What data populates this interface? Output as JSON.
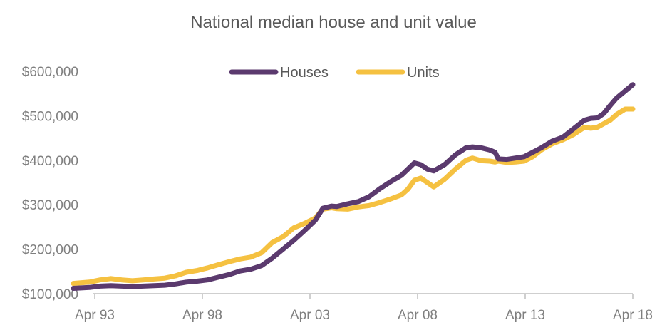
{
  "chart_data": {
    "type": "line",
    "title": "National median house and unit value",
    "xlabel": "",
    "ylabel": "",
    "x_ticks": [
      "Apr 93",
      "Apr 98",
      "Apr 03",
      "Apr 08",
      "Apr 13",
      "Apr 18"
    ],
    "y_ticks": [
      "$100,000",
      "$200,000",
      "$300,000",
      "$400,000",
      "$500,000",
      "$600,000"
    ],
    "ylim": [
      100000,
      600000
    ],
    "xlim": [
      1993.25,
      2018.25
    ],
    "grid": false,
    "legend_position": "top",
    "series": [
      {
        "name": "Houses",
        "color": "#5b3a6e",
        "points": [
          [
            1993.25,
            112000
          ],
          [
            1994.0,
            114000
          ],
          [
            1994.5,
            117000
          ],
          [
            1995.0,
            118000
          ],
          [
            1995.5,
            117000
          ],
          [
            1996.0,
            116000
          ],
          [
            1996.5,
            117000
          ],
          [
            1997.0,
            118000
          ],
          [
            1997.5,
            119000
          ],
          [
            1998.0,
            122000
          ],
          [
            1998.5,
            126000
          ],
          [
            1999.0,
            128000
          ],
          [
            1999.5,
            131000
          ],
          [
            2000.0,
            137000
          ],
          [
            2000.5,
            143000
          ],
          [
            2001.0,
            151000
          ],
          [
            2001.5,
            155000
          ],
          [
            2002.0,
            163000
          ],
          [
            2002.5,
            180000
          ],
          [
            2003.0,
            200000
          ],
          [
            2003.5,
            220000
          ],
          [
            2004.0,
            242000
          ],
          [
            2004.5,
            265000
          ],
          [
            2004.85,
            292000
          ],
          [
            2005.25,
            297000
          ],
          [
            2005.5,
            296000
          ],
          [
            2006.0,
            302000
          ],
          [
            2006.5,
            307000
          ],
          [
            2007.0,
            318000
          ],
          [
            2007.5,
            336000
          ],
          [
            2008.0,
            352000
          ],
          [
            2008.5,
            366000
          ],
          [
            2008.8,
            380000
          ],
          [
            2009.1,
            394000
          ],
          [
            2009.4,
            390000
          ],
          [
            2009.7,
            380000
          ],
          [
            2010.0,
            376000
          ],
          [
            2010.5,
            390000
          ],
          [
            2011.0,
            412000
          ],
          [
            2011.5,
            428000
          ],
          [
            2011.8,
            430000
          ],
          [
            2012.2,
            428000
          ],
          [
            2012.6,
            423000
          ],
          [
            2012.85,
            418000
          ],
          [
            2013.0,
            403000
          ],
          [
            2013.4,
            402000
          ],
          [
            2013.8,
            405000
          ],
          [
            2014.2,
            408000
          ],
          [
            2014.6,
            418000
          ],
          [
            2015.0,
            428000
          ],
          [
            2015.5,
            443000
          ],
          [
            2016.0,
            452000
          ],
          [
            2016.5,
            471000
          ],
          [
            2017.0,
            490000
          ],
          [
            2017.3,
            494000
          ],
          [
            2017.6,
            495000
          ],
          [
            2017.9,
            505000
          ],
          [
            2018.2,
            523000
          ],
          [
            2018.5,
            540000
          ],
          [
            2018.9,
            556000
          ],
          [
            2019.25,
            570000
          ]
        ]
      },
      {
        "name": "Units",
        "color": "#f5c141",
        "points": [
          [
            1993.25,
            123000
          ],
          [
            1994.0,
            126000
          ],
          [
            1994.5,
            131000
          ],
          [
            1995.0,
            134000
          ],
          [
            1995.5,
            131000
          ],
          [
            1996.0,
            129000
          ],
          [
            1996.5,
            131000
          ],
          [
            1997.0,
            133000
          ],
          [
            1997.5,
            135000
          ],
          [
            1998.0,
            140000
          ],
          [
            1998.5,
            148000
          ],
          [
            1999.0,
            152000
          ],
          [
            1999.5,
            158000
          ],
          [
            2000.0,
            165000
          ],
          [
            2000.5,
            172000
          ],
          [
            2001.0,
            178000
          ],
          [
            2001.5,
            182000
          ],
          [
            2002.0,
            192000
          ],
          [
            2002.5,
            215000
          ],
          [
            2003.0,
            228000
          ],
          [
            2003.5,
            248000
          ],
          [
            2004.0,
            258000
          ],
          [
            2004.5,
            270000
          ],
          [
            2004.85,
            290000
          ],
          [
            2005.25,
            293000
          ],
          [
            2005.5,
            291000
          ],
          [
            2006.0,
            290000
          ],
          [
            2006.5,
            295000
          ],
          [
            2007.0,
            298000
          ],
          [
            2007.5,
            305000
          ],
          [
            2008.0,
            313000
          ],
          [
            2008.5,
            322000
          ],
          [
            2008.8,
            335000
          ],
          [
            2009.1,
            355000
          ],
          [
            2009.4,
            360000
          ],
          [
            2009.7,
            350000
          ],
          [
            2010.0,
            340000
          ],
          [
            2010.5,
            357000
          ],
          [
            2011.0,
            380000
          ],
          [
            2011.5,
            400000
          ],
          [
            2011.8,
            405000
          ],
          [
            2012.2,
            399000
          ],
          [
            2012.6,
            398000
          ],
          [
            2012.85,
            396000
          ],
          [
            2013.0,
            398000
          ],
          [
            2013.4,
            395000
          ],
          [
            2013.8,
            396000
          ],
          [
            2014.2,
            398000
          ],
          [
            2014.6,
            408000
          ],
          [
            2015.0,
            423000
          ],
          [
            2015.5,
            437000
          ],
          [
            2016.0,
            446000
          ],
          [
            2016.5,
            458000
          ],
          [
            2017.0,
            474000
          ],
          [
            2017.3,
            472000
          ],
          [
            2017.6,
            474000
          ],
          [
            2017.9,
            482000
          ],
          [
            2018.2,
            490000
          ],
          [
            2018.5,
            503000
          ],
          [
            2018.9,
            515000
          ],
          [
            2019.25,
            515000
          ]
        ]
      }
    ]
  }
}
